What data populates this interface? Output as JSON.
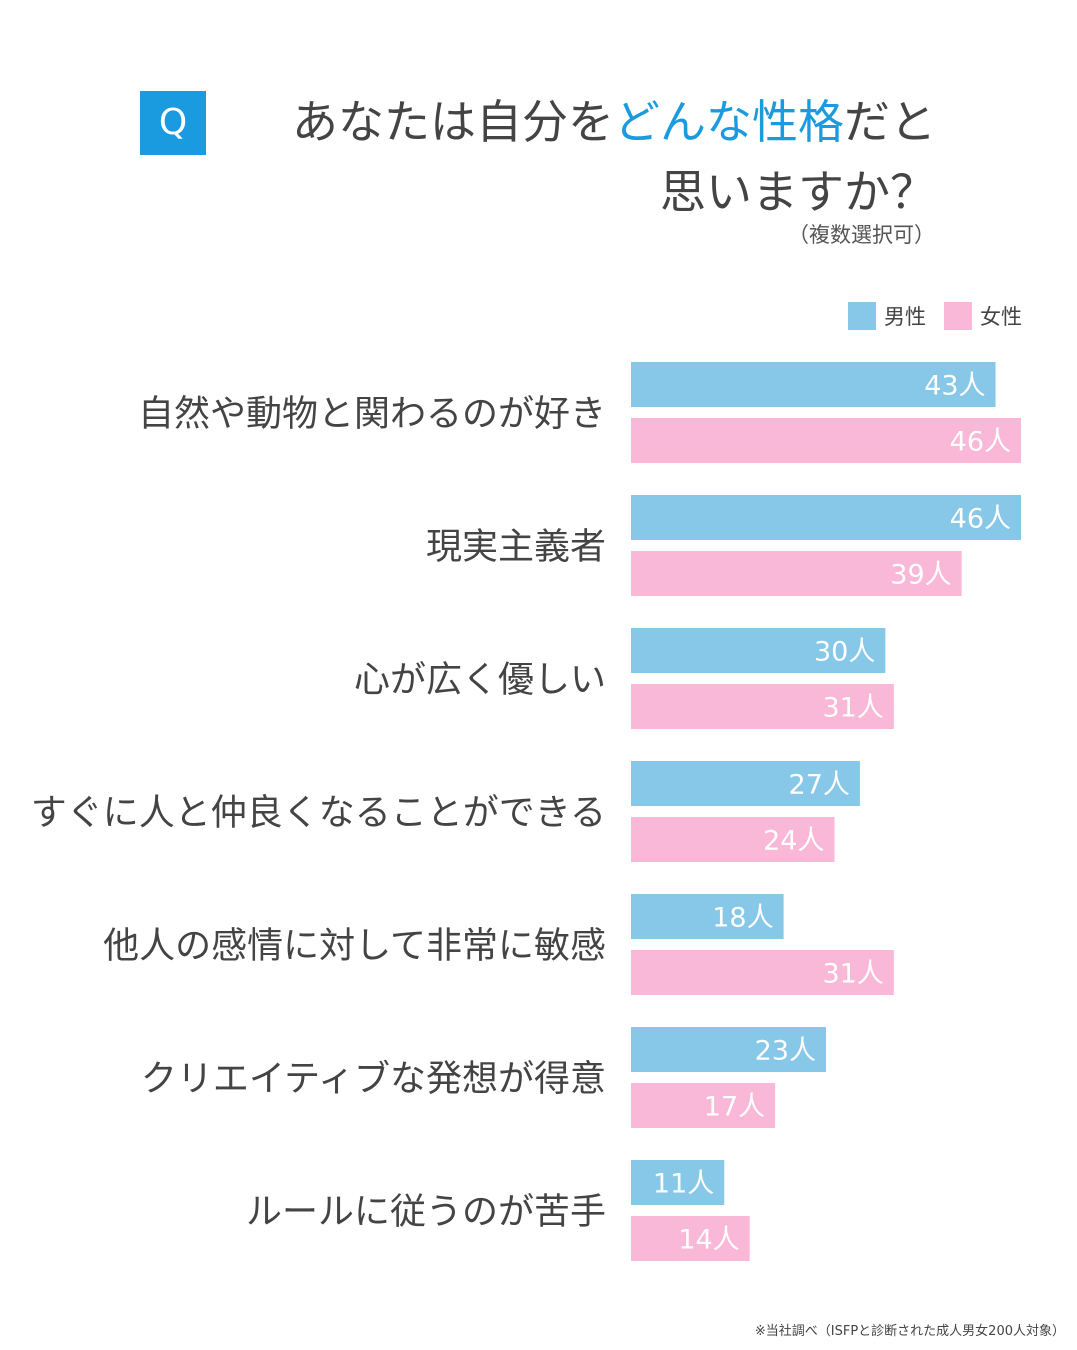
{
  "header": {
    "badge": "Q",
    "title_line1_prefix": "あなたは自分を",
    "title_line1_highlight": "どんな性格",
    "title_line1_suffix": "だと",
    "title_line2": "思いますか？",
    "subtitle": "（複数選択可）"
  },
  "footnote": "※当社調べ（ISFPと診断された成人男女200人対象）",
  "colors": {
    "accent": "#1a9be0",
    "male": "#87c7e8",
    "female": "#f9b8d7",
    "text": "#444444"
  },
  "chart_data": {
    "type": "bar",
    "orientation": "horizontal",
    "unit": "人",
    "legend_position": "top-right",
    "categories": [
      "自然や動物と関わるのが好き",
      "現実主義者",
      "心が広く優しい",
      "すぐに人と仲良くなることができる",
      "他人の感情に対して非常に敏感",
      "クリエイティブな発想が得意",
      "ルールに従うのが苦手"
    ],
    "series": [
      {
        "name": "男性",
        "values": [
          43,
          46,
          30,
          27,
          18,
          23,
          11
        ]
      },
      {
        "name": "女性",
        "values": [
          46,
          39,
          31,
          24,
          31,
          17,
          14
        ]
      }
    ],
    "xlim": [
      0,
      46
    ]
  }
}
